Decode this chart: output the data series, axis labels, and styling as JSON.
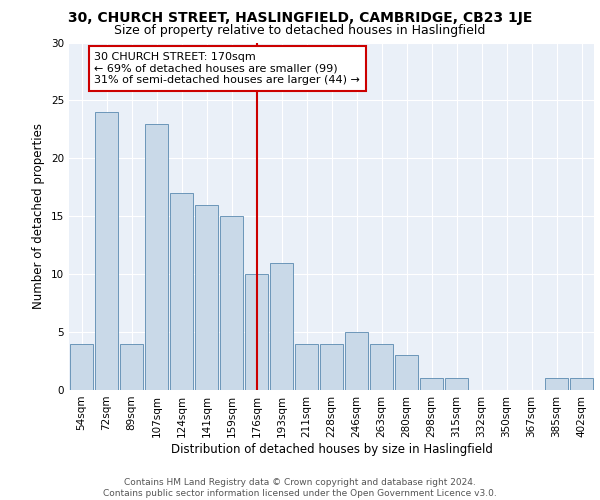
{
  "title1": "30, CHURCH STREET, HASLINGFIELD, CAMBRIDGE, CB23 1JE",
  "title2": "Size of property relative to detached houses in Haslingfield",
  "xlabel": "Distribution of detached houses by size in Haslingfield",
  "ylabel": "Number of detached properties",
  "categories": [
    "54sqm",
    "72sqm",
    "89sqm",
    "107sqm",
    "124sqm",
    "141sqm",
    "159sqm",
    "176sqm",
    "193sqm",
    "211sqm",
    "228sqm",
    "246sqm",
    "263sqm",
    "280sqm",
    "298sqm",
    "315sqm",
    "332sqm",
    "350sqm",
    "367sqm",
    "385sqm",
    "402sqm"
  ],
  "values": [
    4,
    24,
    4,
    23,
    17,
    16,
    15,
    10,
    11,
    4,
    4,
    5,
    4,
    3,
    1,
    1,
    0,
    0,
    0,
    1,
    1
  ],
  "bar_color": "#c9d9e8",
  "bar_edge_color": "#5a8ab0",
  "vline_x": 7,
  "vline_color": "#cc0000",
  "annotation_text": "30 CHURCH STREET: 170sqm\n← 69% of detached houses are smaller (99)\n31% of semi-detached houses are larger (44) →",
  "annotation_box_color": "#ffffff",
  "annotation_box_edge": "#cc0000",
  "ylim": [
    0,
    30
  ],
  "yticks": [
    0,
    5,
    10,
    15,
    20,
    25,
    30
  ],
  "background_color": "#eaf0f8",
  "footer": "Contains HM Land Registry data © Crown copyright and database right 2024.\nContains public sector information licensed under the Open Government Licence v3.0.",
  "title1_fontsize": 10,
  "title2_fontsize": 9,
  "xlabel_fontsize": 8.5,
  "ylabel_fontsize": 8.5,
  "tick_fontsize": 7.5,
  "annotation_fontsize": 8,
  "footer_fontsize": 6.5
}
